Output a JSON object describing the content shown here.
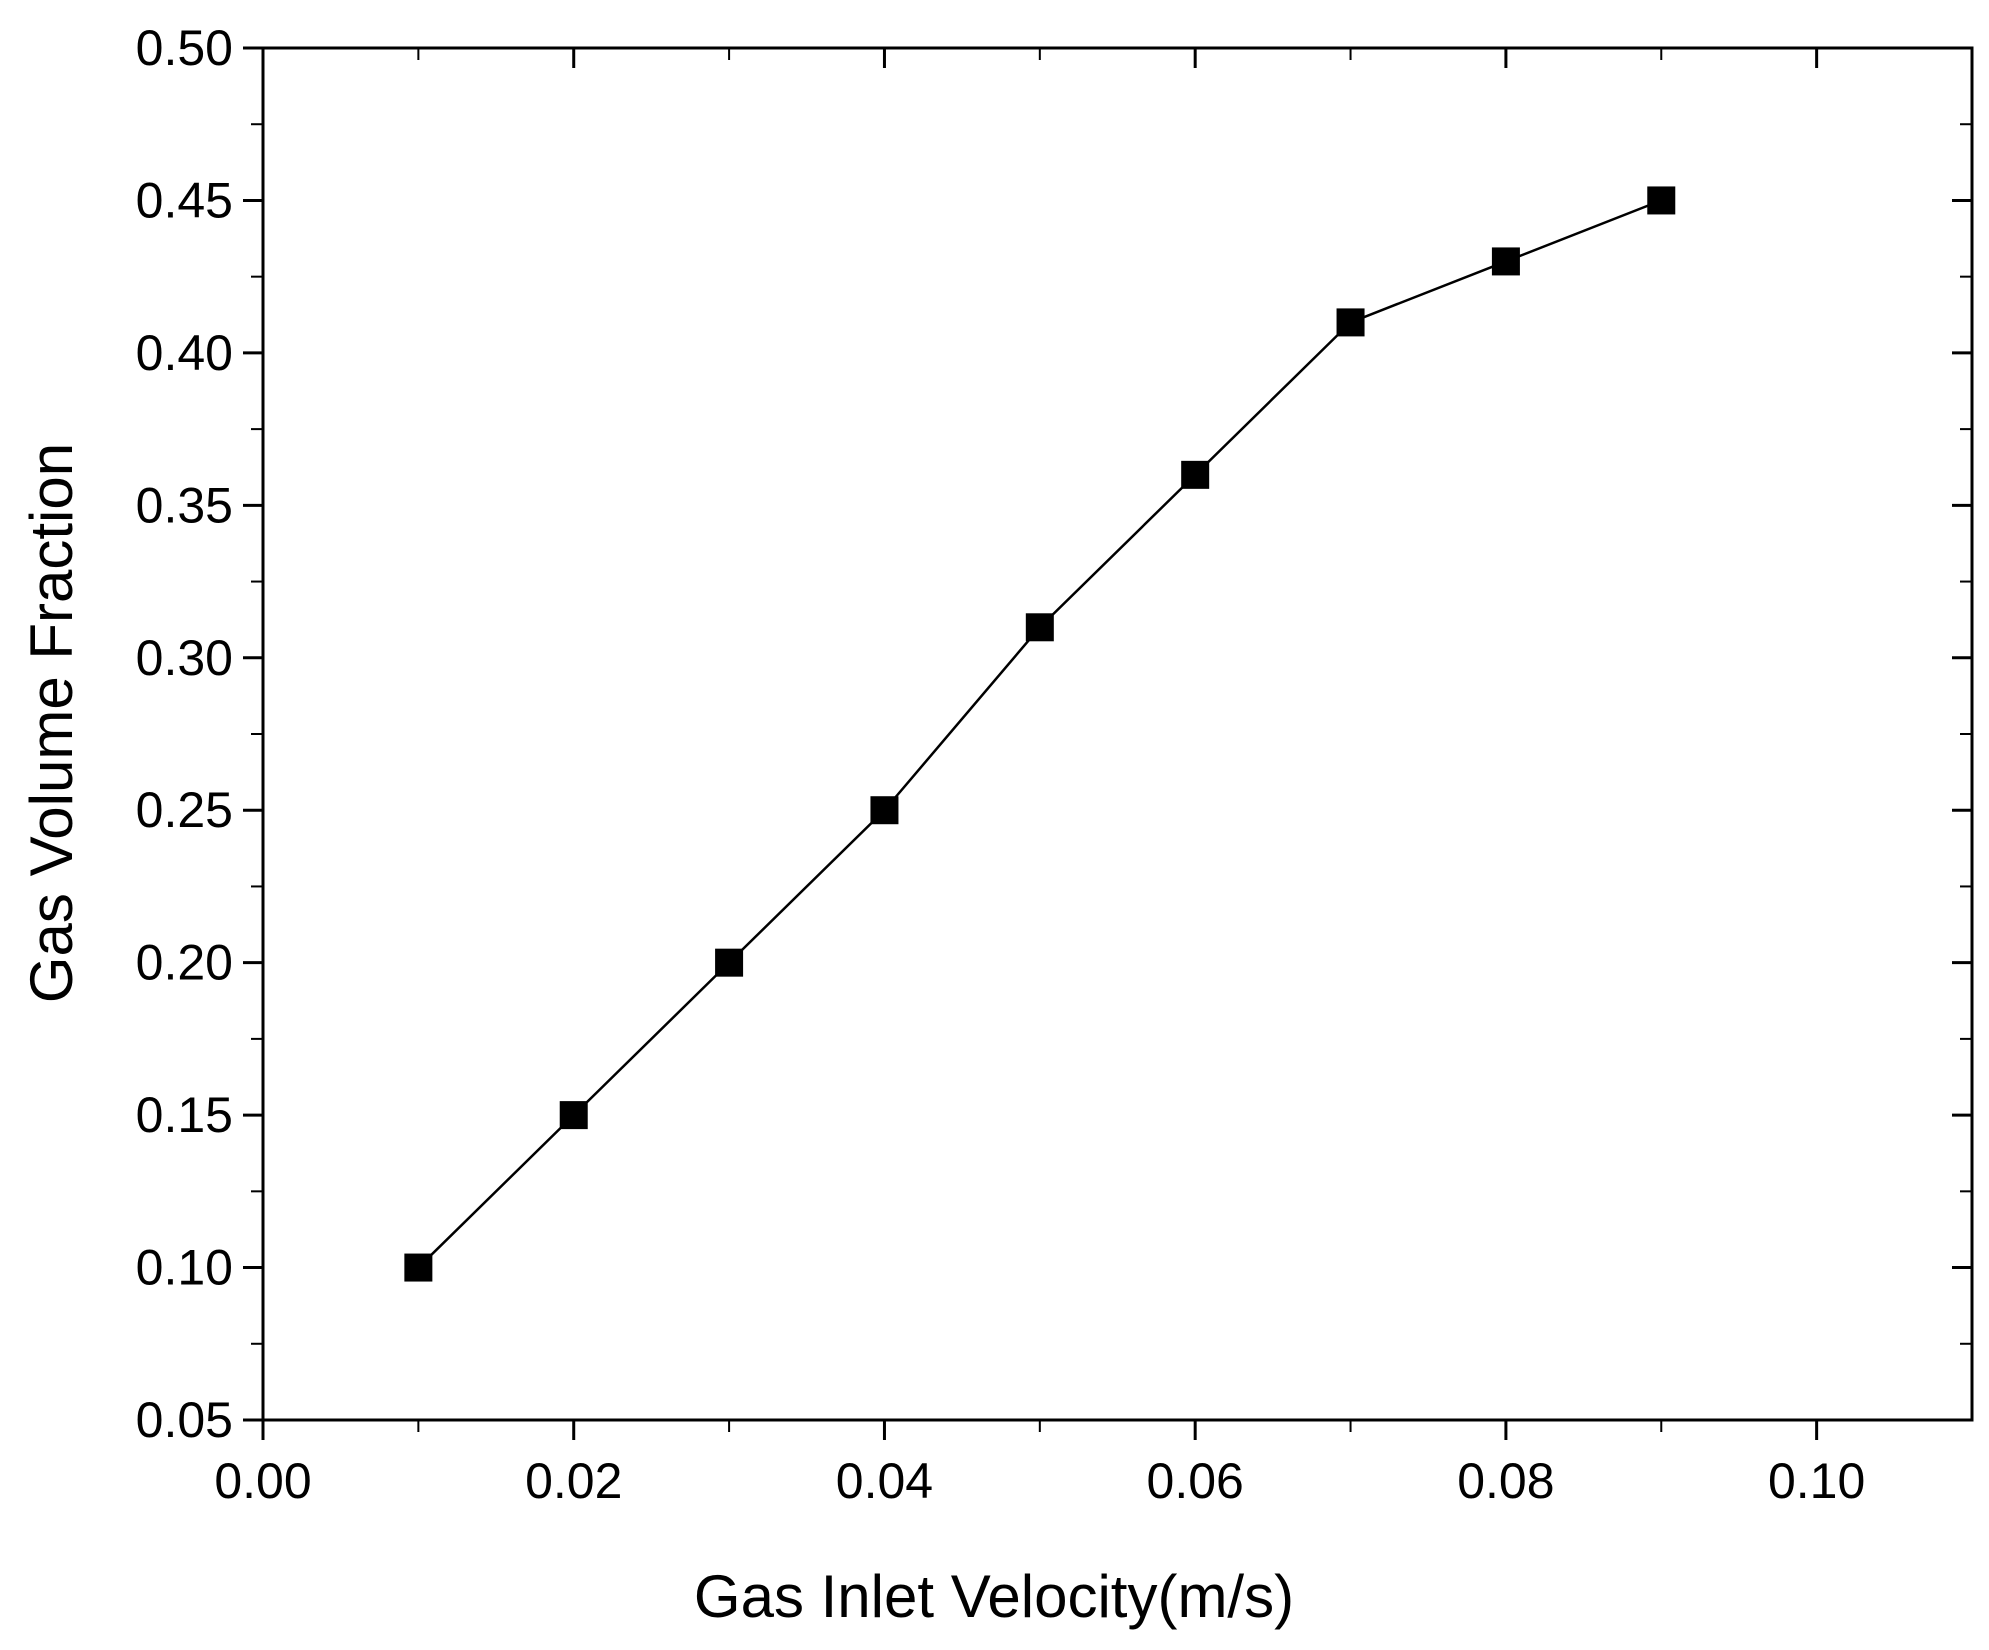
{
  "chart_data": {
    "type": "line",
    "title": "",
    "xlabel": "Gas Inlet Velocity(m/s)",
    "ylabel": "Gas Volume Fraction",
    "xlim": [
      0.0,
      0.11
    ],
    "ylim": [
      0.05,
      0.5
    ],
    "x_ticks": [
      "0.00",
      "0.02",
      "0.04",
      "0.06",
      "0.08",
      "0.10"
    ],
    "y_ticks": [
      "0.05",
      "0.10",
      "0.15",
      "0.20",
      "0.25",
      "0.30",
      "0.35",
      "0.40",
      "0.45",
      "0.50"
    ],
    "grid": false,
    "legend": "none",
    "series": [
      {
        "name": "Gas Volume Fraction",
        "marker": "square",
        "color": "#000000",
        "x": [
          0.01,
          0.02,
          0.03,
          0.04,
          0.05,
          0.06,
          0.07,
          0.08,
          0.09
        ],
        "y": [
          0.1,
          0.15,
          0.2,
          0.25,
          0.31,
          0.36,
          0.41,
          0.43,
          0.45
        ]
      }
    ]
  }
}
